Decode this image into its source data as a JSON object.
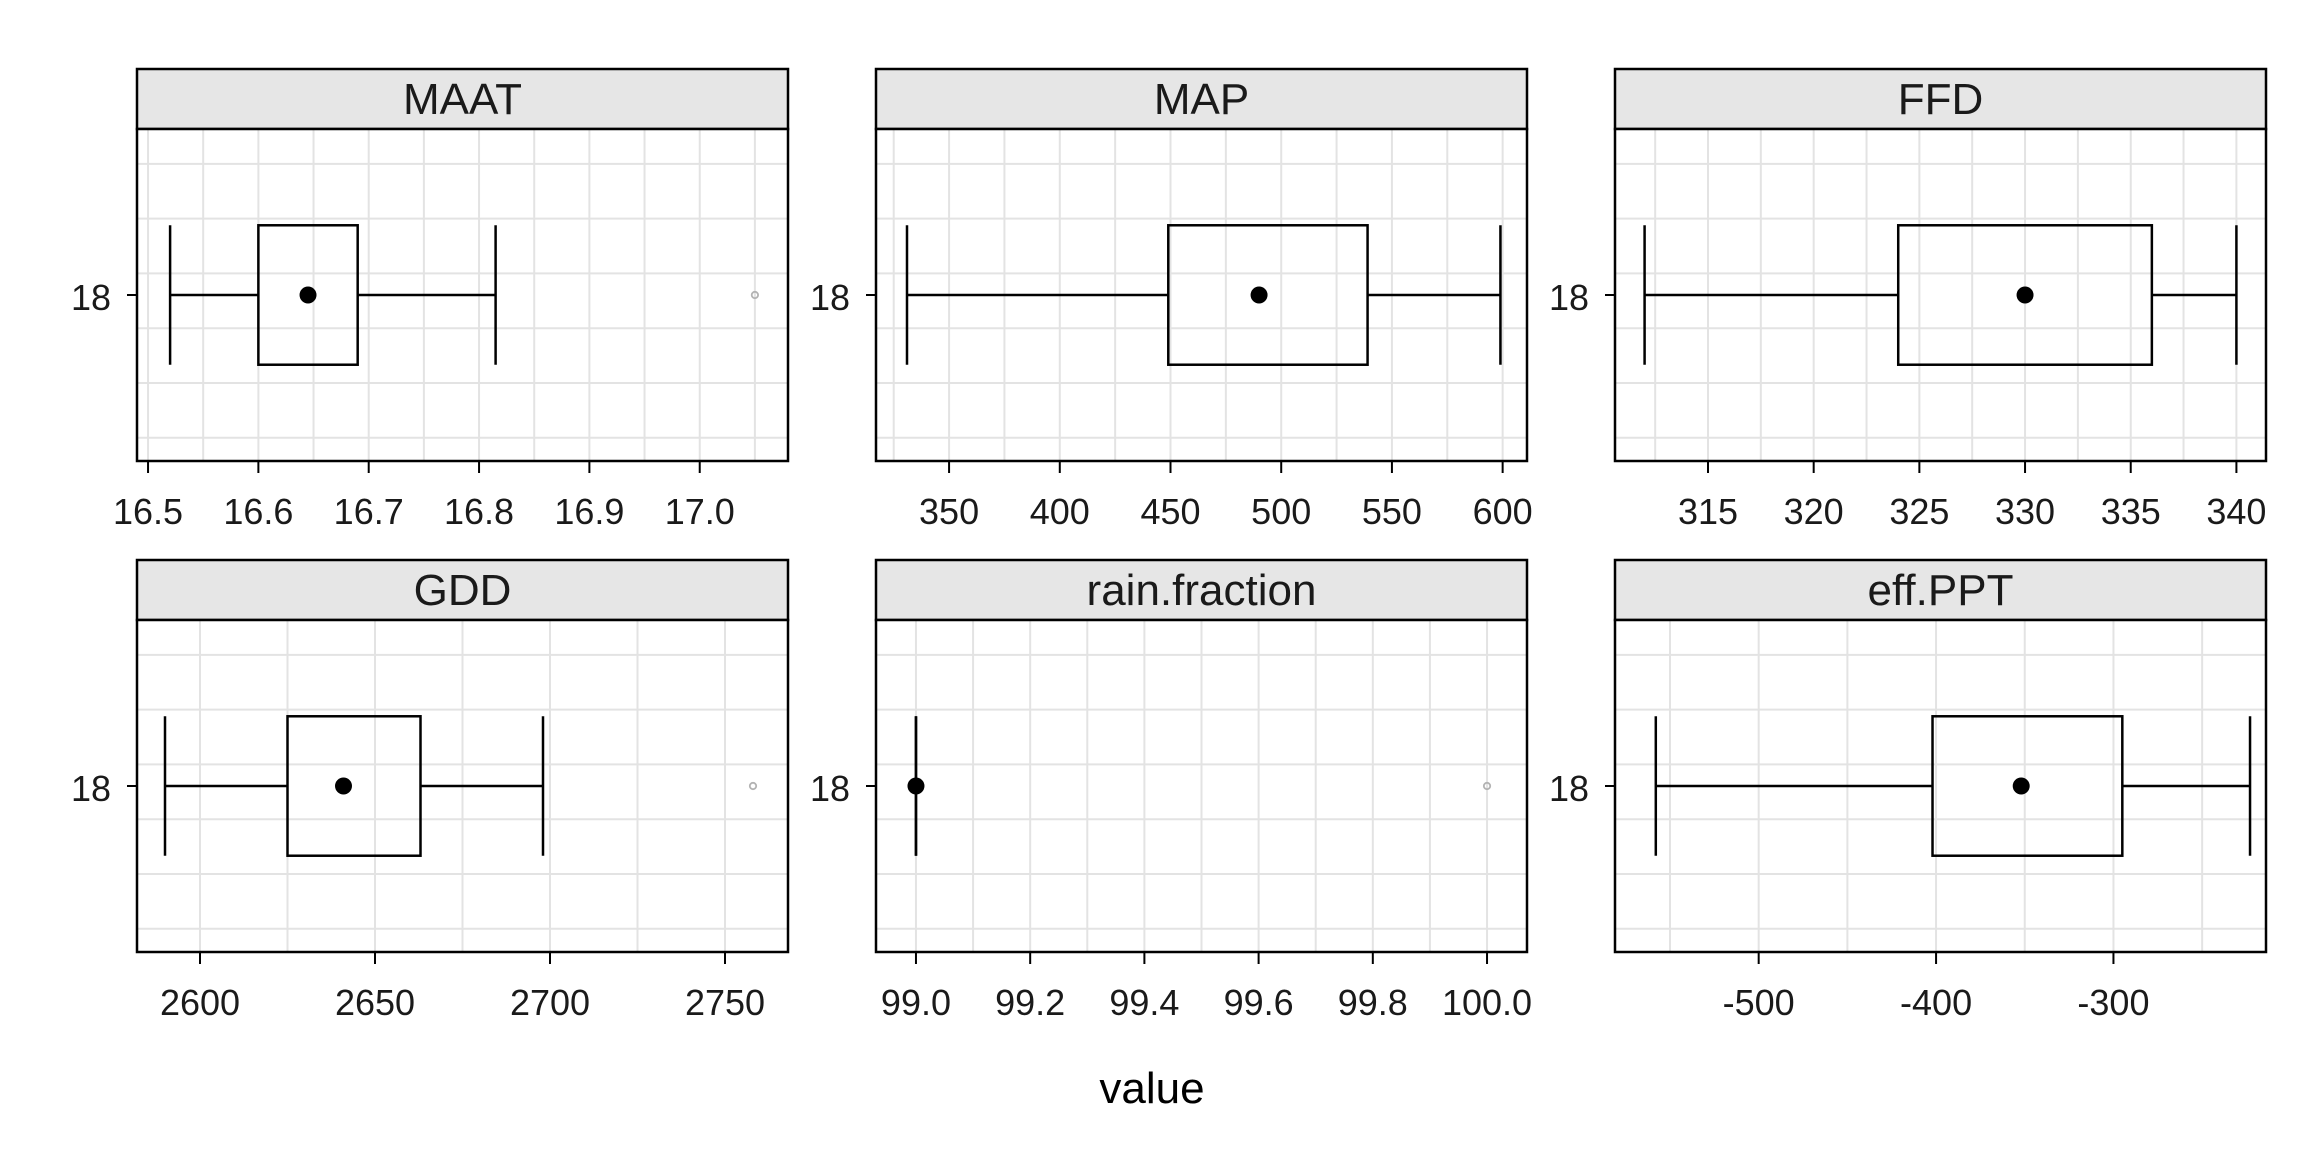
{
  "chart_data": {
    "type": "boxplot",
    "layout": "facets 2 rows x 3 columns",
    "xlabel": "value",
    "ylabel": "",
    "grid": true,
    "colors": {
      "strip_fill": "#e6e6e6",
      "grid": "#e3e3e3",
      "box_stroke": "#000000",
      "outlier": "#b3b3b3"
    },
    "panels": [
      {
        "name": "MAAT",
        "category": "18",
        "xlim": [
          16.49,
          17.08
        ],
        "ticks": [
          16.5,
          16.6,
          16.7,
          16.8,
          16.9,
          17.0
        ],
        "tick_labels": [
          "16.5",
          "16.6",
          "16.7",
          "16.8",
          "16.9",
          "17.0"
        ],
        "whisker_low": 16.52,
        "q1": 16.6,
        "median": 16.645,
        "q3": 16.69,
        "whisker_high": 16.815,
        "outliers": [
          17.05
        ]
      },
      {
        "name": "MAP",
        "category": "18",
        "xlim": [
          317,
          611
        ],
        "ticks": [
          350,
          400,
          450,
          500,
          550,
          600
        ],
        "tick_labels": [
          "350",
          "400",
          "450",
          "500",
          "550",
          "600"
        ],
        "whisker_low": 331,
        "q1": 449,
        "median": 490,
        "q3": 539,
        "whisker_high": 599,
        "outliers": []
      },
      {
        "name": "FFD",
        "category": "18",
        "xlim": [
          310.6,
          341.4
        ],
        "ticks": [
          315,
          320,
          325,
          330,
          335,
          340
        ],
        "tick_labels": [
          "315",
          "320",
          "325",
          "330",
          "335",
          "340"
        ],
        "whisker_low": 312,
        "q1": 324,
        "median": 330,
        "q3": 336,
        "whisker_high": 340,
        "outliers": []
      },
      {
        "name": "GDD",
        "category": "18",
        "xlim": [
          2582,
          2768
        ],
        "ticks": [
          2600,
          2650,
          2700,
          2750
        ],
        "tick_labels": [
          "2600",
          "2650",
          "2700",
          "2750"
        ],
        "whisker_low": 2590,
        "q1": 2625,
        "median": 2641,
        "q3": 2663,
        "whisker_high": 2698,
        "outliers": [
          2758
        ]
      },
      {
        "name": "rain.fraction",
        "category": "18",
        "xlim": [
          98.93,
          100.07
        ],
        "ticks": [
          99.0,
          99.2,
          99.4,
          99.6,
          99.8,
          100.0
        ],
        "tick_labels": [
          "99.0",
          "99.2",
          "99.4",
          "99.6",
          "99.8",
          "100.0"
        ],
        "whisker_low": 99,
        "q1": 99,
        "median": 99,
        "q3": 99,
        "whisker_high": 99,
        "outliers": [
          100
        ]
      },
      {
        "name": "eff.PPT",
        "category": "18",
        "xlim": [
          -581,
          -214
        ],
        "ticks": [
          -500,
          -400,
          -300
        ],
        "tick_labels": [
          "-500",
          "-400",
          "-300"
        ],
        "whisker_low": -558,
        "q1": -402,
        "median": -352,
        "q3": -295,
        "whisker_high": -223,
        "outliers": []
      }
    ]
  }
}
